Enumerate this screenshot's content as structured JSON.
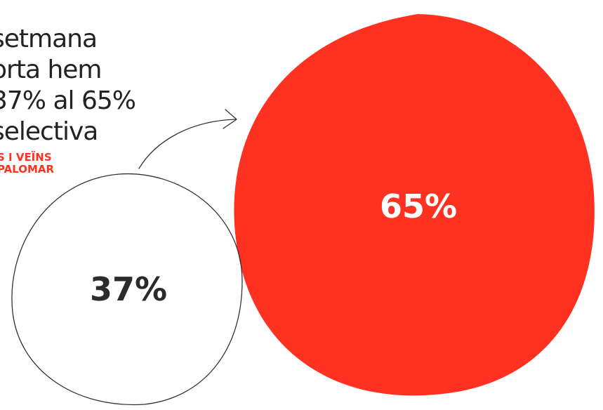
{
  "headline": {
    "lines": [
      "setmana",
      "orta hem",
      "37% al 65%",
      "selectiva"
    ]
  },
  "byline": {
    "lines": [
      "S I VEÏNS",
      "PALOMAR"
    ]
  },
  "before": {
    "label": "37%",
    "value": 37,
    "color": "#2b2b2b",
    "outline_color": "#333333"
  },
  "after": {
    "label": "65%",
    "value": 65,
    "color": "#ff3120",
    "text_color": "#ffffff"
  },
  "arrow": {
    "icon": "curved-arrow-icon"
  },
  "colors": {
    "accent": "#ff3120",
    "text": "#222222",
    "background": "#ffffff"
  }
}
